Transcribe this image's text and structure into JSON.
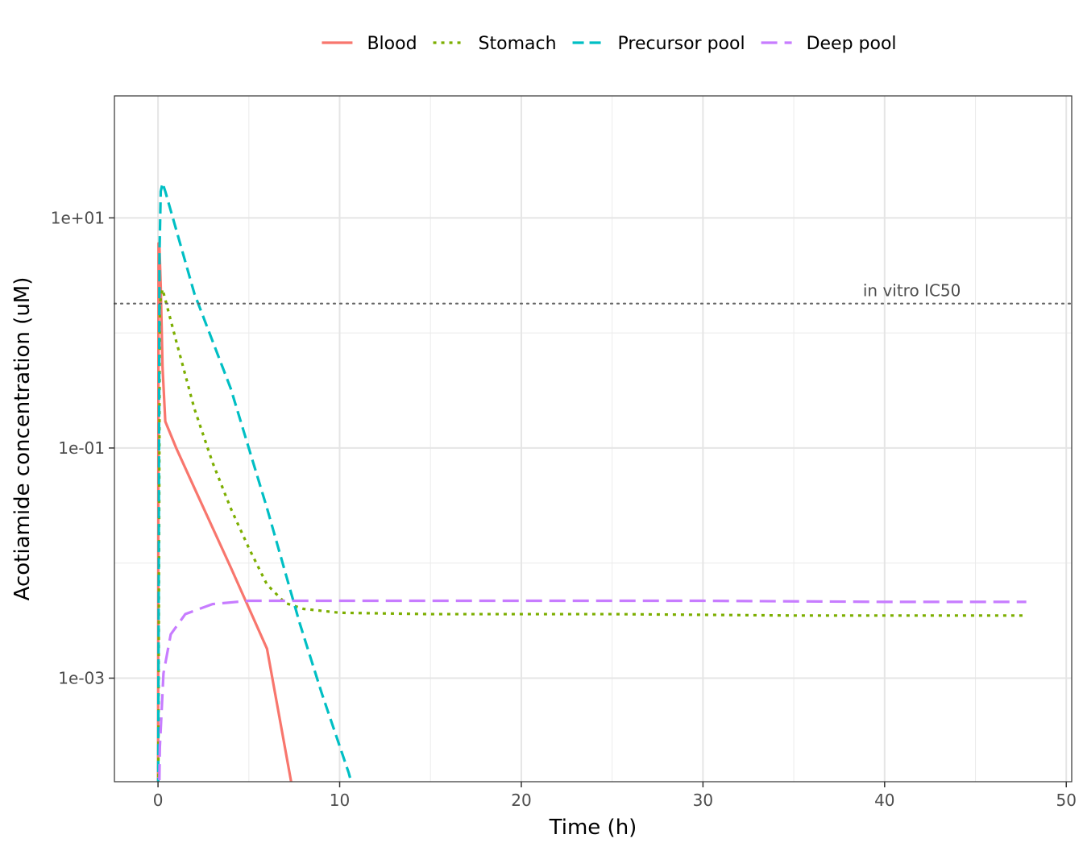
{
  "chart_data": {
    "type": "line",
    "title": "",
    "xlabel": "Time (h)",
    "ylabel": "Acotiamide concentration (uM)",
    "xlim": [
      -2.4,
      50.3
    ],
    "ylim_log10": [
      -3.9,
      2.06
    ],
    "y_scale": "log10",
    "x_ticks": [
      0,
      10,
      20,
      30,
      40,
      50
    ],
    "x_tick_labels": [
      "0",
      "10",
      "20",
      "30",
      "40",
      "50"
    ],
    "y_ticks": [
      10,
      0.1,
      0.001
    ],
    "y_tick_labels": [
      "1e+01",
      "1e-01",
      "1e-03"
    ],
    "grid": true,
    "legend_position": "top",
    "reference_line": {
      "label": "in vitro IC50",
      "y": 1.8,
      "style": "dotted",
      "color": "#666666"
    },
    "series": [
      {
        "name": "Blood",
        "color": "#F8766D",
        "dash": "solid",
        "points": [
          [
            0,
            2e-05
          ],
          [
            0.03,
            6
          ],
          [
            0.08,
            5.5
          ],
          [
            0.15,
            2.5
          ],
          [
            0.25,
            0.5
          ],
          [
            0.4,
            0.17
          ],
          [
            1,
            0.1
          ],
          [
            2,
            0.045
          ],
          [
            4,
            0.0092
          ],
          [
            6,
            0.0018
          ],
          [
            7.9,
            4e-05
          ]
        ]
      },
      {
        "name": "Stomach",
        "color": "#7CAE00",
        "dash": "dotted",
        "points": [
          [
            0,
            2e-05
          ],
          [
            0.1,
            1.8
          ],
          [
            0.25,
            2.4
          ],
          [
            1,
            0.85
          ],
          [
            2,
            0.22
          ],
          [
            3,
            0.075
          ],
          [
            4,
            0.03
          ],
          [
            5,
            0.0135
          ],
          [
            6,
            0.0065
          ],
          [
            7,
            0.0045
          ],
          [
            8,
            0.004
          ],
          [
            10,
            0.0037
          ],
          [
            15,
            0.0036
          ],
          [
            25,
            0.0036
          ],
          [
            35,
            0.0035
          ],
          [
            47.8,
            0.0035
          ]
        ]
      },
      {
        "name": "Precursor pool",
        "color": "#00BFC4",
        "dash": "dashed",
        "points": [
          [
            0,
            2e-05
          ],
          [
            0.08,
            5
          ],
          [
            0.15,
            17
          ],
          [
            0.25,
            20
          ],
          [
            0.4,
            17
          ],
          [
            2,
            2.2
          ],
          [
            4,
            0.33
          ],
          [
            6,
            0.03
          ],
          [
            7.8,
            0.003
          ],
          [
            9,
            0.00075
          ],
          [
            10.5,
            0.00015
          ],
          [
            11.5,
            4e-05
          ]
        ]
      },
      {
        "name": "Deep pool",
        "color": "#C77CFF",
        "dash": "longdash",
        "points": [
          [
            0,
            2e-05
          ],
          [
            0.1,
            0.00025
          ],
          [
            0.3,
            0.0011
          ],
          [
            0.7,
            0.0024
          ],
          [
            1.5,
            0.0036
          ],
          [
            3,
            0.0044
          ],
          [
            5,
            0.0047
          ],
          [
            10,
            0.0047
          ],
          [
            20,
            0.0047
          ],
          [
            30,
            0.0047
          ],
          [
            40,
            0.0046
          ],
          [
            47.8,
            0.0046
          ]
        ]
      }
    ]
  }
}
